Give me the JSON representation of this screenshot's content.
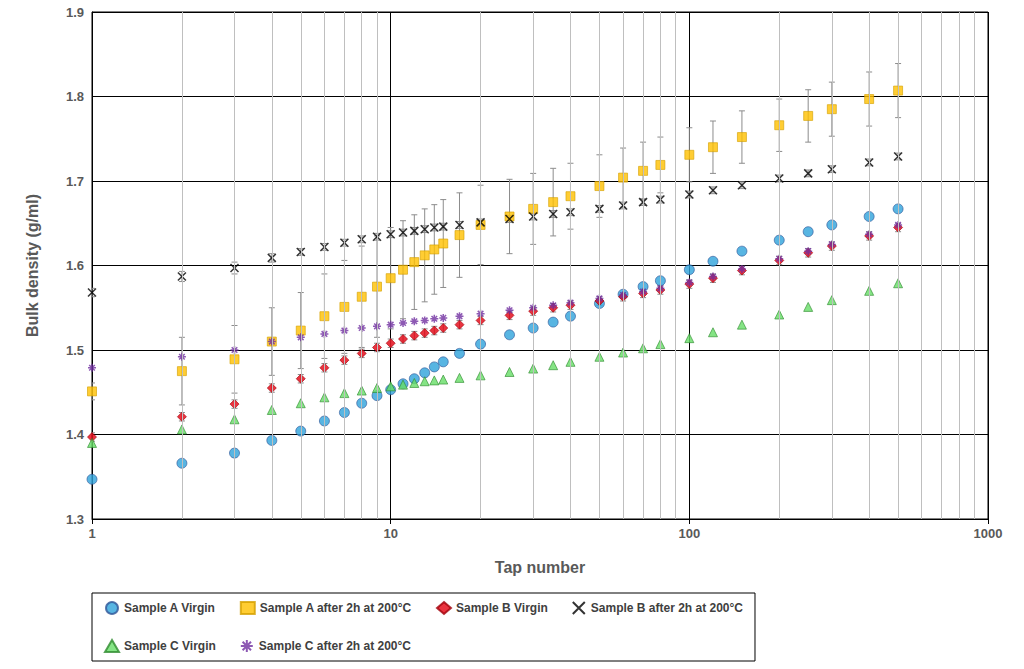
{
  "chart_data": {
    "type": "scatter",
    "x_label": "Tap number",
    "y_label": "Bulk density (g/ml)",
    "log": "x",
    "grid": true,
    "legend": "bottom",
    "xlim": [
      1,
      1000
    ],
    "xticks": [
      1,
      10,
      100,
      1000
    ],
    "ylim": [
      1.3,
      1.9
    ],
    "yticks": [
      1.3,
      1.4,
      1.5,
      1.6,
      1.7,
      1.8,
      1.9
    ],
    "x": [
      1,
      2,
      3,
      4,
      5,
      6,
      7,
      8,
      9,
      10,
      11,
      12,
      13,
      14,
      15,
      17,
      20,
      25,
      30,
      35,
      40,
      50,
      60,
      70,
      80,
      100,
      120,
      150,
      200,
      250,
      300,
      400,
      500
    ],
    "series": [
      {
        "name": "Sample A Virgin",
        "color": "#2ea3db",
        "marker": "circle",
        "values": [
          1.347,
          1.366,
          1.378,
          1.393,
          1.404,
          1.416,
          1.426,
          1.437,
          1.446,
          1.453,
          1.46,
          1.466,
          1.473,
          1.48,
          1.486,
          1.496,
          1.507,
          1.518,
          1.526,
          1.533,
          1.54,
          1.555,
          1.566,
          1.575,
          1.582,
          1.595,
          1.605,
          1.617,
          1.63,
          1.64,
          1.648,
          1.658,
          1.667
        ]
      },
      {
        "name": "Sample A after 2h at 200°C",
        "color": "#ffc000",
        "marker": "square",
        "values": [
          1.451,
          1.475,
          1.489,
          1.51,
          1.523,
          1.54,
          1.551,
          1.563,
          1.575,
          1.585,
          1.595,
          1.604,
          1.612,
          1.619,
          1.626,
          1.636,
          1.648,
          1.658,
          1.667,
          1.675,
          1.682,
          1.694,
          1.704,
          1.712,
          1.719,
          1.731,
          1.74,
          1.752,
          1.766,
          1.777,
          1.785,
          1.797,
          1.807
        ],
        "error": [
          0.01,
          0.04,
          0.04,
          0.04,
          0.045,
          0.05,
          0.055,
          0.06,
          0.06,
          0.06,
          0.058,
          0.056,
          0.055,
          0.053,
          0.052,
          0.05,
          0.047,
          0.044,
          0.042,
          0.04,
          0.039,
          0.037,
          0.035,
          0.034,
          0.033,
          0.032,
          0.031,
          0.031,
          0.031,
          0.031,
          0.032,
          0.032,
          0.032
        ]
      },
      {
        "name": "Sample B Virgin",
        "color": "#e3000f",
        "marker": "diamond",
        "values": [
          1.397,
          1.421,
          1.436,
          1.455,
          1.466,
          1.479,
          1.488,
          1.496,
          1.503,
          1.508,
          1.513,
          1.517,
          1.52,
          1.523,
          1.526,
          1.53,
          1.535,
          1.541,
          1.546,
          1.55,
          1.553,
          1.558,
          1.563,
          1.567,
          1.571,
          1.578,
          1.585,
          1.594,
          1.606,
          1.615,
          1.623,
          1.635,
          1.645
        ],
        "error": [
          0.005,
          0.005,
          0.005,
          0.005,
          0.005,
          0.005,
          0.005,
          0.005,
          0.005,
          0.005,
          0.005,
          0.005,
          0.005,
          0.005,
          0.005,
          0.005,
          0.005,
          0.005,
          0.005,
          0.005,
          0.005,
          0.005,
          0.005,
          0.005,
          0.005,
          0.005,
          0.005,
          0.005,
          0.005,
          0.005,
          0.005,
          0.005,
          0.005
        ]
      },
      {
        "name": "Sample B after 2h at 200°C",
        "color": "#000000",
        "marker": "x",
        "values": [
          1.568,
          1.587,
          1.597,
          1.609,
          1.616,
          1.622,
          1.627,
          1.631,
          1.634,
          1.637,
          1.639,
          1.641,
          1.643,
          1.645,
          1.646,
          1.648,
          1.651,
          1.655,
          1.658,
          1.661,
          1.663,
          1.667,
          1.671,
          1.675,
          1.678,
          1.684,
          1.689,
          1.695,
          1.703,
          1.709,
          1.714,
          1.722,
          1.729
        ],
        "error": [
          0.005,
          0.006,
          0.007,
          0.005,
          0.004,
          0.004,
          0.004,
          0.004,
          0.004,
          0.004,
          0.004,
          0.004,
          0.004,
          0.004,
          0.004,
          0.004,
          0.004,
          0.004,
          0.004,
          0.004,
          0.004,
          0.004,
          0.004,
          0.004,
          0.004,
          0.004,
          0.004,
          0.004,
          0.004,
          0.004,
          0.004,
          0.004,
          0.004
        ]
      },
      {
        "name": "Sample C Virgin",
        "color": "#66dd66",
        "marker": "triangle",
        "values": [
          1.39,
          1.406,
          1.418,
          1.429,
          1.437,
          1.444,
          1.449,
          1.452,
          1.455,
          1.457,
          1.459,
          1.461,
          1.463,
          1.464,
          1.465,
          1.467,
          1.47,
          1.474,
          1.478,
          1.482,
          1.486,
          1.492,
          1.497,
          1.502,
          1.507,
          1.514,
          1.521,
          1.53,
          1.542,
          1.551,
          1.559,
          1.57,
          1.579
        ]
      },
      {
        "name": "Sample C after 2h at 200°C",
        "color": "#7030a0",
        "marker": "star",
        "values": [
          1.479,
          1.492,
          1.5,
          1.51,
          1.515,
          1.519,
          1.523,
          1.526,
          1.528,
          1.53,
          1.532,
          1.534,
          1.535,
          1.537,
          1.538,
          1.54,
          1.543,
          1.547,
          1.55,
          1.553,
          1.556,
          1.561,
          1.565,
          1.569,
          1.573,
          1.58,
          1.587,
          1.596,
          1.608,
          1.617,
          1.625,
          1.637,
          1.648
        ]
      }
    ]
  }
}
